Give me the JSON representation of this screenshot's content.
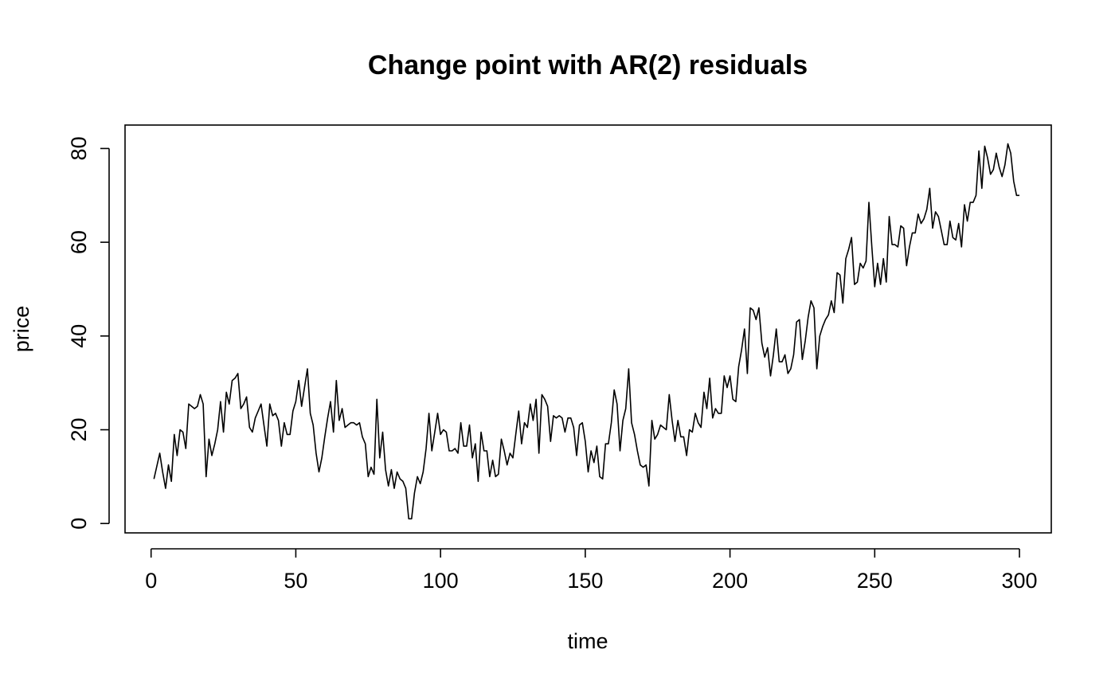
{
  "chart_data": {
    "type": "line",
    "title": "Change point with AR(2) residuals",
    "xlabel": "time",
    "ylabel": "price",
    "xlim": [
      -9,
      311
    ],
    "ylim": [
      -2,
      85
    ],
    "x_ticks": [
      0,
      50,
      100,
      150,
      200,
      250,
      300
    ],
    "y_ticks": [
      0,
      20,
      40,
      60,
      80
    ],
    "x_tick_labels": [
      "0",
      "50",
      "100",
      "150",
      "200",
      "250",
      "300"
    ],
    "y_tick_labels": [
      "0",
      "20",
      "40",
      "60",
      "80"
    ],
    "grid": false,
    "legend": "none",
    "series": [
      {
        "x": [
          1,
          3,
          4,
          5,
          6,
          7,
          8,
          9,
          10,
          11,
          12,
          13,
          14,
          15,
          16,
          17,
          18,
          19,
          20,
          21,
          22,
          23,
          24,
          25,
          26,
          27,
          28,
          29,
          30,
          31,
          32,
          33,
          34,
          35,
          36,
          37,
          38,
          39,
          40,
          41,
          42,
          43,
          44,
          45,
          46,
          47,
          48,
          49,
          50,
          51,
          52,
          53,
          54,
          55,
          56,
          57,
          58,
          59,
          60,
          61,
          62,
          63,
          64,
          65,
          66,
          67,
          68,
          69,
          70,
          71,
          72,
          73,
          74,
          75,
          76,
          77,
          78,
          79,
          80,
          81,
          82,
          83,
          84,
          85,
          86,
          87,
          88,
          89,
          90,
          91,
          92,
          93,
          94,
          95,
          96,
          97,
          98,
          99,
          100,
          101,
          102,
          103,
          104,
          105,
          106,
          107,
          108,
          109,
          110,
          111,
          112,
          113,
          114,
          115,
          116,
          117,
          118,
          119,
          120,
          121,
          122,
          123,
          124,
          125,
          126,
          127,
          128,
          129,
          130,
          131,
          132,
          133,
          134,
          135,
          136,
          137,
          138,
          139,
          140,
          141,
          142,
          143,
          144,
          145,
          146,
          147,
          148,
          149,
          150,
          151,
          152,
          153,
          154,
          155,
          156,
          157,
          158,
          159,
          160,
          161,
          162,
          163,
          164,
          165,
          166,
          167,
          168,
          169,
          170,
          171,
          172,
          173,
          174,
          175,
          176,
          177,
          178,
          179,
          180,
          181,
          182,
          183,
          184,
          185,
          186,
          187,
          188,
          189,
          190,
          191,
          192,
          193,
          194,
          195,
          196,
          197,
          198,
          199,
          200,
          201,
          202,
          203,
          204,
          205,
          206,
          207,
          208,
          209,
          210,
          211,
          212,
          213,
          214,
          215,
          216,
          217,
          218,
          219,
          220,
          221,
          222,
          223,
          224,
          225,
          226,
          227,
          228,
          229,
          230,
          231,
          232,
          233,
          234,
          235,
          236,
          237,
          238,
          239,
          240,
          241,
          242,
          243,
          244,
          245,
          246,
          247,
          248,
          249,
          250,
          251,
          252,
          253,
          254,
          255,
          256,
          257,
          258,
          259,
          260,
          261,
          262,
          263,
          264,
          265,
          266,
          267,
          268,
          269,
          270,
          271,
          272,
          273,
          274,
          275,
          276,
          277,
          278,
          279,
          280,
          281,
          282,
          283,
          284,
          285,
          286,
          287,
          288,
          289,
          290,
          291,
          292,
          293,
          294,
          295,
          296,
          297,
          298,
          299,
          300
        ],
        "y": [
          9.5,
          15.0,
          11.0,
          7.5,
          12.5,
          9.0,
          19.0,
          14.5,
          20.0,
          19.5,
          16.0,
          25.5,
          25.0,
          24.5,
          25.0,
          27.5,
          25.5,
          10.0,
          18.0,
          14.5,
          17.0,
          20.0,
          26.0,
          19.5,
          28.0,
          25.5,
          30.5,
          31.0,
          32.0,
          24.5,
          25.5,
          27.0,
          20.5,
          19.5,
          22.5,
          24.0,
          25.5,
          21.0,
          16.5,
          25.5,
          23.0,
          23.5,
          22.0,
          16.5,
          21.5,
          19.0,
          19.0,
          24.0,
          26.0,
          30.5,
          25.0,
          29.0,
          33.0,
          23.5,
          21.0,
          15.0,
          11.0,
          14.0,
          18.5,
          22.5,
          26.0,
          19.5,
          30.5,
          22.0,
          24.5,
          20.5,
          21.0,
          21.5,
          21.5,
          21.0,
          21.5,
          18.5,
          17.0,
          10.0,
          12.0,
          10.5,
          26.5,
          14.0,
          19.5,
          11.5,
          8.0,
          11.5,
          7.5,
          11.0,
          9.5,
          9.0,
          7.5,
          1.0,
          1.0,
          6.5,
          10.0,
          8.5,
          11.0,
          16.0,
          23.5,
          15.5,
          19.5,
          23.5,
          19.0,
          20.0,
          19.5,
          15.5,
          15.5,
          16.0,
          15.0,
          21.5,
          16.5,
          16.5,
          21.0,
          14.0,
          17.0,
          9.0,
          19.5,
          15.5,
          15.5,
          10.0,
          13.5,
          10.0,
          10.5,
          18.0,
          15.5,
          12.5,
          15.0,
          14.0,
          19.0,
          24.0,
          17.0,
          21.5,
          20.5,
          25.5,
          22.0,
          26.5,
          15.0,
          27.5,
          26.5,
          25.0,
          17.5,
          23.0,
          22.5,
          23.0,
          22.5,
          19.5,
          22.5,
          22.5,
          20.5,
          14.5,
          21.0,
          21.5,
          17.5,
          11.0,
          15.5,
          13.0,
          16.5,
          10.0,
          9.5,
          17.0,
          17.0,
          21.5,
          28.5,
          25.5,
          15.5,
          22.0,
          24.5,
          33.0,
          21.5,
          19.0,
          15.5,
          12.5,
          12.0,
          12.5,
          8.0,
          22.0,
          18.0,
          19.0,
          21.0,
          20.5,
          20.0,
          27.5,
          22.0,
          17.5,
          22.0,
          18.5,
          18.5,
          14.5,
          20.0,
          19.5,
          23.5,
          21.5,
          20.5,
          28.0,
          24.5,
          31.0,
          22.5,
          24.5,
          23.5,
          23.5,
          31.5,
          29.0,
          31.5,
          26.5,
          26.0,
          33.5,
          37.0,
          41.5,
          32.0,
          46.0,
          45.5,
          43.5,
          46.0,
          38.5,
          35.5,
          37.5,
          31.5,
          36.0,
          41.5,
          34.5,
          34.5,
          36.0,
          32.0,
          33.0,
          36.0,
          43.0,
          43.5,
          35.0,
          39.0,
          44.0,
          47.5,
          46.0,
          33.0,
          40.0,
          42.0,
          43.5,
          44.5,
          47.5,
          45.0,
          53.5,
          53.0,
          47.0,
          56.5,
          58.5,
          61.0,
          51.0,
          51.5,
          55.5,
          54.5,
          56.0,
          68.5,
          59.0,
          50.5,
          55.5,
          51.0,
          56.5,
          51.5,
          65.5,
          59.5,
          59.5,
          59.0,
          63.5,
          63.0,
          55.0,
          59.0,
          62.0,
          62.0,
          66.0,
          64.0,
          65.0,
          67.0,
          71.5,
          63.0,
          66.5,
          65.5,
          62.5,
          59.5,
          59.5,
          64.5,
          61.0,
          60.5,
          64.0,
          59.0,
          68.0,
          64.5,
          68.5,
          68.5,
          70.0,
          79.5,
          71.5,
          80.5,
          78.0,
          74.5,
          75.5,
          79.0,
          76.0,
          74.0,
          76.5,
          81.0,
          79.0,
          73.0,
          70.0,
          70.0
        ]
      }
    ]
  }
}
